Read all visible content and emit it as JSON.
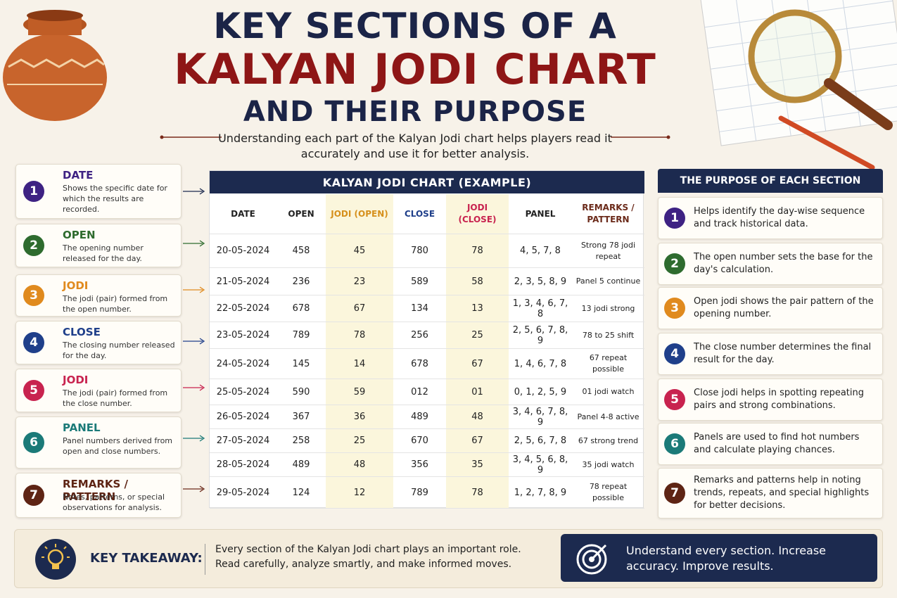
{
  "header": {
    "title_lines": [
      "KEY SECTIONS OF A",
      "KALYAN JODI CHART",
      "AND THEIR PURPOSE"
    ],
    "subtitle": "Understanding each part of the Kalyan Jodi chart helps players read it accurately and use it for better analysis."
  },
  "sections": [
    {
      "number": 1,
      "title": "DATE",
      "description": "Shows the specific date for which the results are recorded."
    },
    {
      "number": 2,
      "title": "OPEN",
      "description": "The opening number released for the day."
    },
    {
      "number": 3,
      "title": "JODI",
      "description": "The jodi (pair) formed from the open number."
    },
    {
      "number": 4,
      "title": "CLOSE",
      "description": "The closing number released for the day."
    },
    {
      "number": 5,
      "title": "JODI",
      "description": "The jodi (pair) formed from the close number."
    },
    {
      "number": 6,
      "title": "PANEL",
      "description": "Panel numbers derived from open and close numbers."
    },
    {
      "number": 7,
      "title": "REMARKS / PATTERN",
      "description": "Notes, patterns, or special observations for analysis."
    }
  ],
  "table": {
    "title": "KALYAN JODI CHART (EXAMPLE)",
    "columns": [
      "DATE",
      "OPEN",
      "JODI (OPEN)",
      "CLOSE",
      "JODI (CLOSE)",
      "PANEL",
      "REMARKS / PATTERN"
    ],
    "rows": [
      [
        "20-05-2024",
        "458",
        "45",
        "780",
        "78",
        "4, 5, 7, 8",
        "Strong 78 jodi repeat"
      ],
      [
        "21-05-2024",
        "236",
        "23",
        "589",
        "58",
        "2, 3, 5, 8, 9",
        "Panel 5 continue"
      ],
      [
        "22-05-2024",
        "678",
        "67",
        "134",
        "13",
        "1, 3, 4, 6, 7, 8",
        "13 jodi strong"
      ],
      [
        "23-05-2024",
        "789",
        "78",
        "256",
        "25",
        "2, 5, 6, 7, 8, 9",
        "78 to 25 shift"
      ],
      [
        "24-05-2024",
        "145",
        "14",
        "678",
        "67",
        "1, 4, 6, 7, 8",
        "67 repeat possible"
      ],
      [
        "25-05-2024",
        "590",
        "59",
        "012",
        "01",
        "0, 1, 2, 5, 9",
        "01 jodi watch"
      ],
      [
        "26-05-2024",
        "367",
        "36",
        "489",
        "48",
        "3, 4, 6, 7, 8, 9",
        "Panel 4-8 active"
      ],
      [
        "27-05-2024",
        "258",
        "25",
        "670",
        "67",
        "2, 5, 6, 7, 8",
        "67 strong trend"
      ],
      [
        "28-05-2024",
        "489",
        "48",
        "356",
        "35",
        "3, 4, 5, 6, 8, 9",
        "35 jodi watch"
      ],
      [
        "29-05-2024",
        "124",
        "12",
        "789",
        "78",
        "1, 2, 7, 8, 9",
        "78 repeat possible"
      ]
    ]
  },
  "purpose": {
    "title": "THE PURPOSE OF EACH SECTION",
    "items": [
      {
        "number": 1,
        "text": "Helps identify the day-wise sequence and track historical data."
      },
      {
        "number": 2,
        "text": "The open number sets the base for the day's calculation."
      },
      {
        "number": 3,
        "text": "Open jodi shows the pair pattern of the opening number."
      },
      {
        "number": 4,
        "text": "The close number determines the final result for the day."
      },
      {
        "number": 5,
        "text": "Close jodi helps in spotting repeating pairs and strong combinations."
      },
      {
        "number": 6,
        "text": "Panels are used to find hot numbers and calculate playing chances."
      },
      {
        "number": 7,
        "text": "Remarks and patterns help in noting trends, repeats, and special highlights for better decisions."
      }
    ]
  },
  "footer": {
    "takeaway_label": "KEY TAKEAWAY:",
    "takeaway_text": "Every section of the Kalyan Jodi chart plays an important role. Read carefully, analyze smartly, and make informed moves.",
    "banner": "Understand every section. Increase accuracy. Improve results."
  }
}
